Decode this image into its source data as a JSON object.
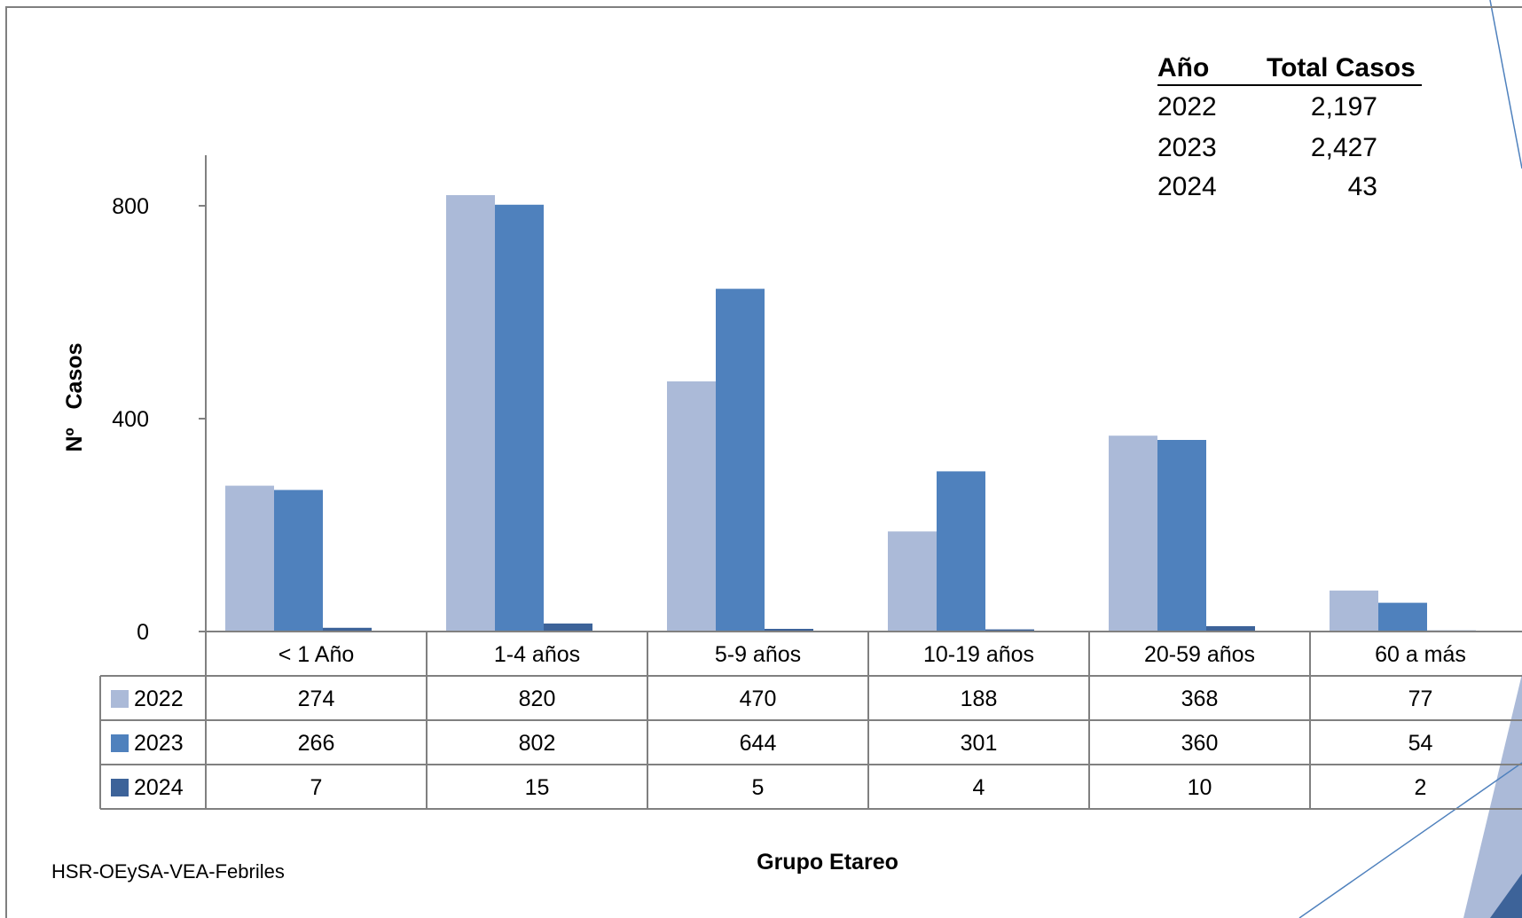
{
  "chart_data": {
    "type": "bar",
    "categories": [
      "< 1 Año",
      "1-4 años",
      "5-9 años",
      "10-19 años",
      "20-59 años",
      "60 a más"
    ],
    "series": [
      {
        "name": "2022",
        "values": [
          274,
          820,
          470,
          188,
          368,
          77
        ],
        "color": "#abbad8"
      },
      {
        "name": "2023",
        "values": [
          266,
          802,
          644,
          301,
          360,
          54
        ],
        "color": "#4f81bd"
      },
      {
        "name": "2024",
        "values": [
          7,
          15,
          5,
          4,
          10,
          2
        ],
        "color": "#3d6399"
      }
    ],
    "xlabel": "Grupo Etareo",
    "ylabel": "Nº   Casos",
    "ylim": [
      0,
      900
    ],
    "yticks": [
      0,
      400,
      800
    ],
    "grid": false,
    "legend": "data-table"
  },
  "totals": {
    "headers": [
      "Año",
      "Total Casos"
    ],
    "rows": [
      {
        "year": "2022",
        "total": "2,197"
      },
      {
        "year": "2023",
        "total": "2,427"
      },
      {
        "year": "2024",
        "total": "43"
      }
    ]
  },
  "source": "HSR-OEySA-VEA-Febriles",
  "colors": {
    "decor_light": "#abbad8",
    "decor_dark": "#3d6399",
    "frame": "#7f7f7f"
  }
}
